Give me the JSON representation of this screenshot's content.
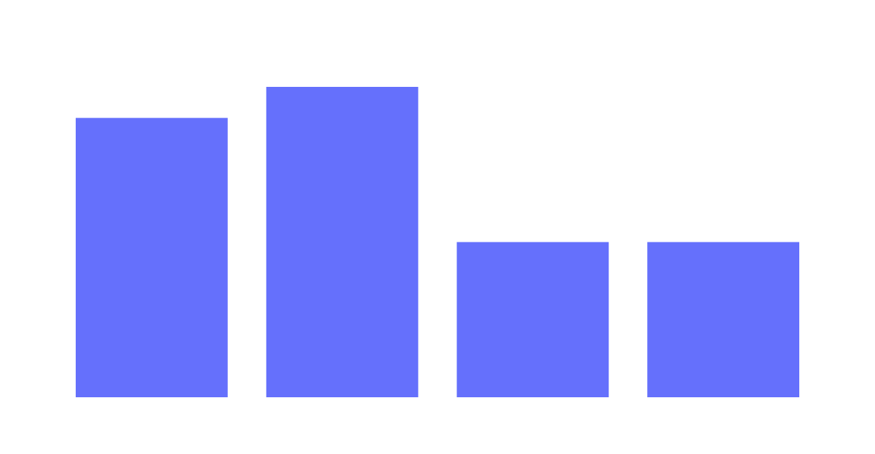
{
  "chart_data": {
    "type": "bar",
    "categories": [
      "",
      "",
      "",
      ""
    ],
    "values": [
      9,
      10,
      5,
      5
    ],
    "ylim": [
      0,
      10
    ],
    "grid": false,
    "axes_visible": false,
    "bar_color": "#6570fc",
    "background": "#ffffff"
  }
}
